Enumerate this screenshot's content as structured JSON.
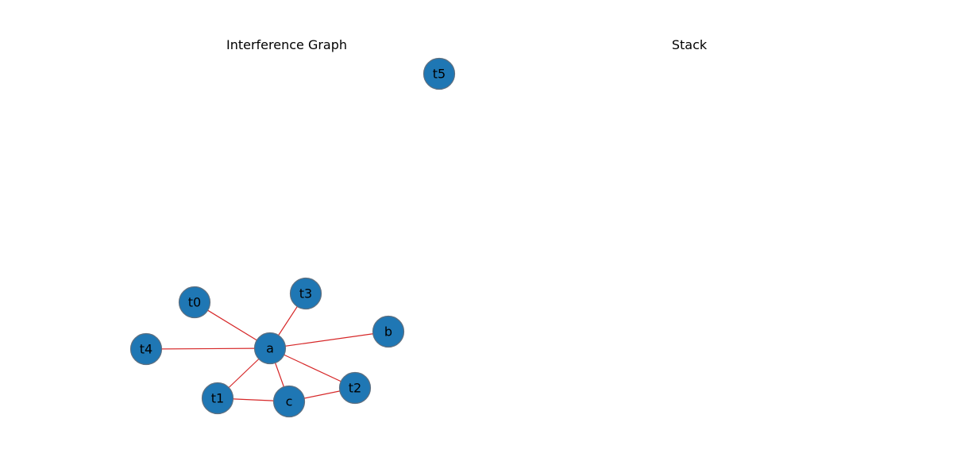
{
  "panels": {
    "left_title": "Interference Graph",
    "right_title": "Stack"
  },
  "colors": {
    "node_fill": "#1f77b4",
    "node_stroke": "#5f6f7f",
    "edge": "#d62728"
  },
  "graph": {
    "nodes": [
      "t0",
      "t3",
      "b",
      "t4",
      "a",
      "t2",
      "t1",
      "c",
      "t5"
    ],
    "edges": [
      [
        "a",
        "t0"
      ],
      [
        "a",
        "t3"
      ],
      [
        "a",
        "b"
      ],
      [
        "a",
        "t4"
      ],
      [
        "a",
        "t2"
      ],
      [
        "a",
        "t1"
      ],
      [
        "a",
        "c"
      ],
      [
        "t1",
        "c"
      ],
      [
        "c",
        "t2"
      ]
    ]
  },
  "stack": []
}
